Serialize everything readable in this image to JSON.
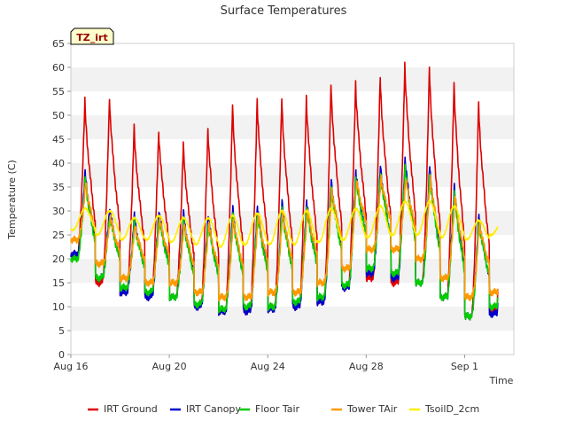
{
  "chart_data": {
    "type": "line",
    "title": "Surface Temperatures",
    "badge": "TZ_irt",
    "xlabel": "Time",
    "ylabel": "Temperature (C)",
    "ylim": [
      0,
      65
    ],
    "yticks": [
      0,
      5,
      10,
      15,
      20,
      25,
      30,
      35,
      40,
      45,
      50,
      55,
      60,
      65
    ],
    "xlim": [
      "2023-08-16",
      "2023-09-03"
    ],
    "xticks": [
      {
        "date": "2023-08-16",
        "label": "Aug 16"
      },
      {
        "date": "2023-08-20",
        "label": "Aug 20"
      },
      {
        "date": "2023-08-24",
        "label": "Aug 24"
      },
      {
        "date": "2023-08-28",
        "label": "Aug 28"
      },
      {
        "date": "2023-09-01",
        "label": "Sep 1"
      }
    ],
    "grid": "horizontal bands",
    "legend_position": "bottom",
    "x_start": "2023-08-16",
    "series": [
      {
        "name": "IRT Ground",
        "color": "#dd0000",
        "mins": [
          21,
          15,
          13,
          12,
          12,
          10,
          9,
          9,
          10,
          10,
          11,
          14,
          16,
          15,
          15,
          12,
          8,
          9
        ],
        "maxs": [
          53,
          54,
          47.5,
          47,
          44,
          47.5,
          52,
          53.5,
          53.5,
          54,
          56.5,
          57,
          58,
          61,
          60,
          57,
          52.5
        ]
      },
      {
        "name": "IRT Canopy",
        "color": "#0000cc",
        "mins": [
          21,
          16,
          13,
          12,
          12,
          10,
          9,
          9,
          9.5,
          10,
          11,
          14,
          17,
          16,
          15,
          12,
          8,
          8.5
        ],
        "maxs": [
          38,
          31,
          29,
          30.5,
          29.5,
          29.5,
          30.5,
          31.5,
          32,
          32.5,
          36.5,
          38.5,
          39.5,
          41,
          39.5,
          35.5,
          29.5
        ]
      },
      {
        "name": "Floor Tair",
        "color": "#00cc00",
        "mins": [
          20,
          16,
          14,
          13,
          12,
          10.5,
          9.5,
          10,
          10,
          11,
          12,
          14.5,
          18,
          17,
          15,
          12,
          8,
          10
        ]
      },
      {
        "name": "Tower TAir",
        "color": "#ff9900",
        "mins": [
          24,
          19,
          16,
          15,
          15,
          13,
          12,
          12,
          13,
          13,
          15,
          18,
          22,
          22,
          20,
          16,
          12,
          13
        ]
      },
      {
        "name": "TsoilD_2cm",
        "color": "#ffee00",
        "mins": [
          26,
          25,
          24,
          24,
          23.5,
          23,
          22.5,
          23,
          23,
          23,
          23.5,
          24,
          24.5,
          25,
          25,
          24.5,
          24,
          25
        ],
        "maxs": [
          30.5,
          30,
          28.5,
          29,
          28.5,
          28.5,
          29,
          29.5,
          30,
          30,
          30.5,
          30.5,
          31,
          32,
          32,
          31,
          28
        ]
      }
    ]
  }
}
